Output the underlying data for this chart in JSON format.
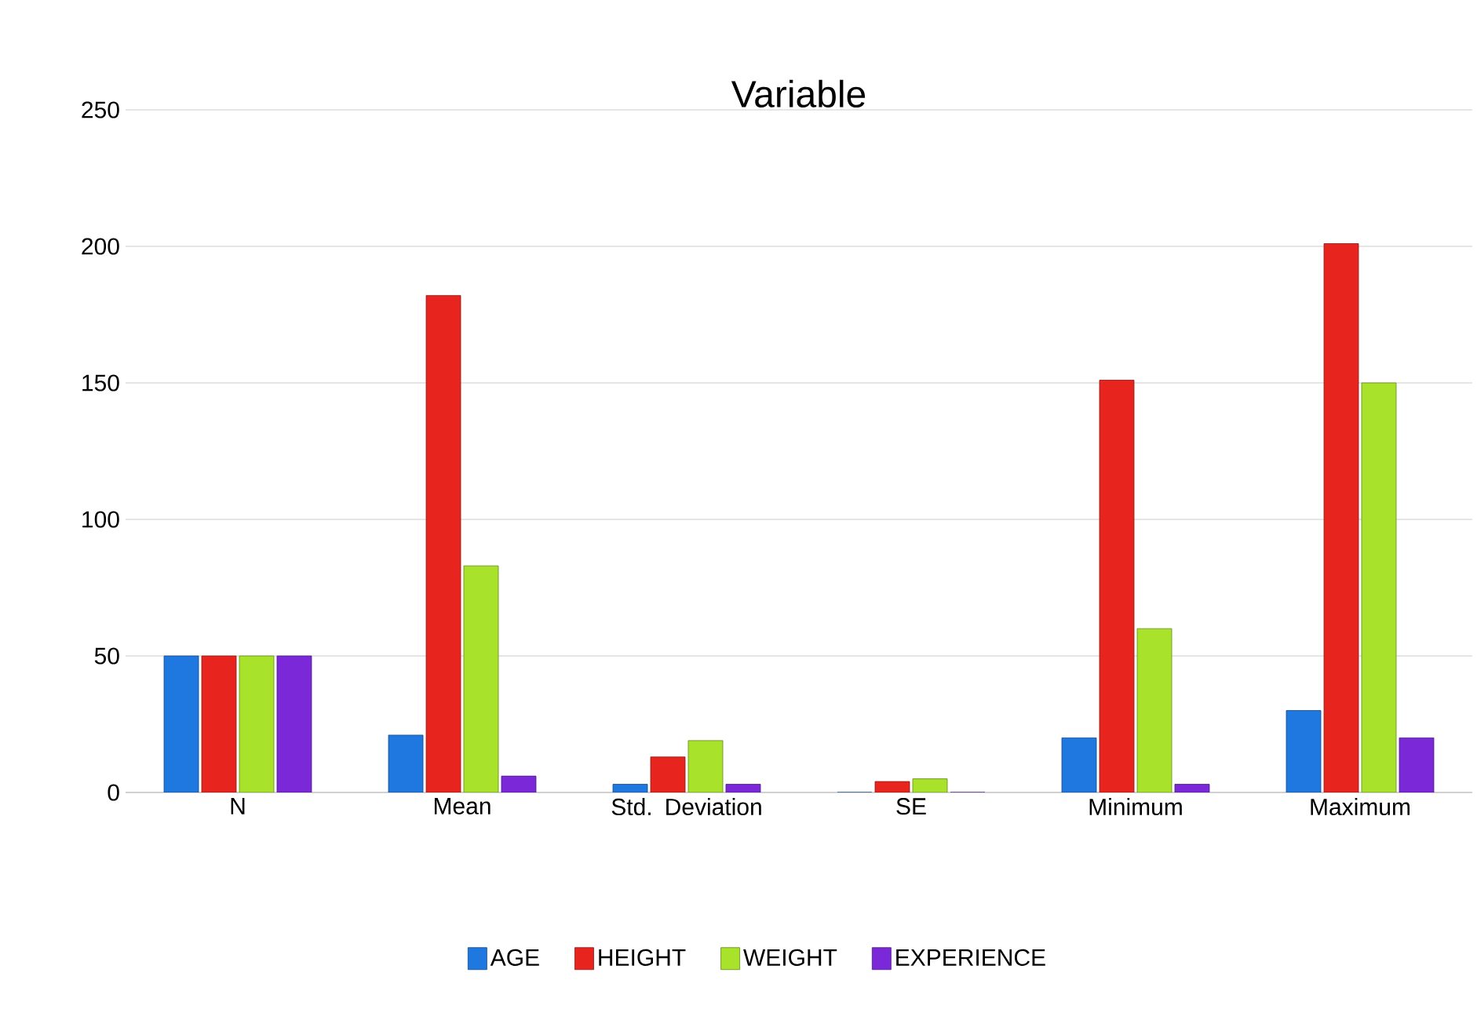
{
  "chart_data": {
    "type": "bar",
    "title": "Variable",
    "categories": [
      "N",
      "Mean",
      "Std. Deviation",
      "SE",
      "Minimum",
      "Maximum"
    ],
    "series": [
      {
        "name": "AGE",
        "color": "#1f77e0",
        "values": [
          50,
          21,
          3,
          0,
          20,
          30
        ]
      },
      {
        "name": "HEIGHT",
        "color": "#e8241f",
        "values": [
          50,
          182,
          13,
          4,
          151,
          201
        ]
      },
      {
        "name": "WEIGHT",
        "color": "#a8e22a",
        "values": [
          50,
          83,
          19,
          5,
          60,
          150
        ]
      },
      {
        "name": "EXPERIENCE",
        "color": "#7a28d8",
        "values": [
          50,
          6,
          3,
          0,
          3,
          20
        ]
      }
    ],
    "ylim": [
      0,
      250
    ],
    "yticks": [
      0,
      50,
      100,
      150,
      200,
      250
    ],
    "grid": "y",
    "legend": "bottom"
  }
}
